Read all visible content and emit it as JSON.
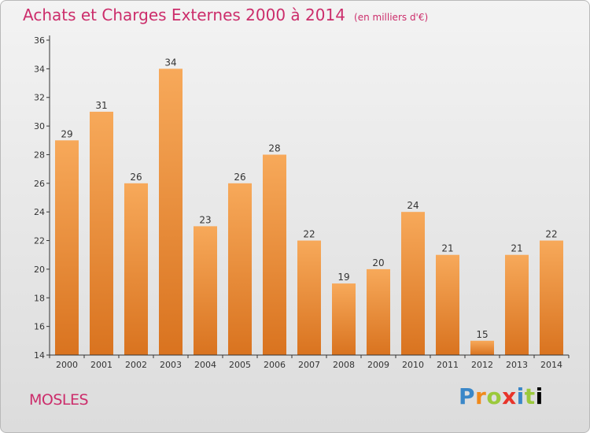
{
  "header": {
    "title": "Achats et Charges Externes 2000 à 2014",
    "unit": "(en milliers d'€)"
  },
  "footer": {
    "commune": "MOSLES",
    "logo_letters": [
      "P",
      "r",
      "o",
      "x",
      "i",
      "t",
      "i"
    ]
  },
  "colors": {
    "title": "#cc2d6b",
    "bar_top": "#f7a95a",
    "bar_bottom": "#d9731f",
    "axis": "#333333"
  },
  "chart_data": {
    "type": "bar",
    "categories": [
      "2000",
      "2001",
      "2002",
      "2003",
      "2004",
      "2005",
      "2006",
      "2007",
      "2008",
      "2009",
      "2010",
      "2011",
      "2012",
      "2013",
      "2014"
    ],
    "values": [
      29,
      31,
      26,
      34,
      23,
      26,
      28,
      22,
      19,
      20,
      24,
      21,
      15,
      21,
      22
    ],
    "data_labels": [
      "29",
      "31",
      "26",
      "34",
      "23",
      "26",
      "28",
      "22",
      "19",
      "20",
      "24",
      "21",
      "15",
      "21",
      "22"
    ],
    "yticks": [
      "14",
      "16",
      "18",
      "20",
      "22",
      "24",
      "26",
      "28",
      "30",
      "32",
      "34",
      "36"
    ],
    "title": "Achats et Charges Externes 2000 à 2014",
    "xlabel": "",
    "ylabel": "",
    "ylim": [
      14,
      36
    ],
    "grid": false,
    "legend": "none"
  }
}
